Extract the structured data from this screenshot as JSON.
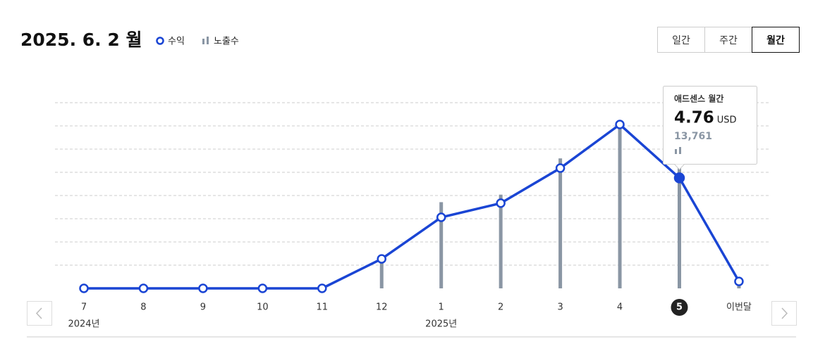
{
  "header": {
    "title": "2025. 6. 2 월",
    "tabs": [
      "일간",
      "주간",
      "월간"
    ],
    "active_tab": 2
  },
  "chart_data": {
    "type": "line",
    "categories": [
      "7",
      "8",
      "9",
      "10",
      "11",
      "12",
      "1",
      "2",
      "3",
      "4",
      "5",
      "이번달"
    ],
    "x_groups": [
      {
        "label": "2024년",
        "start": 0
      },
      {
        "label": "2025년",
        "start": 6
      }
    ],
    "selected": 10,
    "series": [
      {
        "name": "수익",
        "color": "#1a45d4",
        "unit": "USD",
        "values": [
          0,
          0,
          0,
          0,
          0,
          1.27,
          3.06,
          3.67,
          5.18,
          7.06,
          4.76,
          0.3
        ]
      },
      {
        "name": "노출수",
        "color": "#8a96a4",
        "axis": "y2",
        "kind": "bar",
        "values": [
          0,
          0,
          0,
          0,
          0,
          3300,
          9750,
          10600,
          14700,
          18100,
          13761,
          800
        ],
        "value_labels": [
          null,
          null,
          null,
          null,
          null,
          null,
          null,
          null,
          null,
          null,
          "13,761",
          null
        ]
      }
    ],
    "tooltip_title": "애드센스 월간",
    "ylim": [
      0,
      8
    ],
    "yticks": [
      1,
      2,
      3,
      4,
      5,
      6,
      7,
      8
    ],
    "grid": true,
    "y2lim": [
      0,
      21000
    ]
  }
}
